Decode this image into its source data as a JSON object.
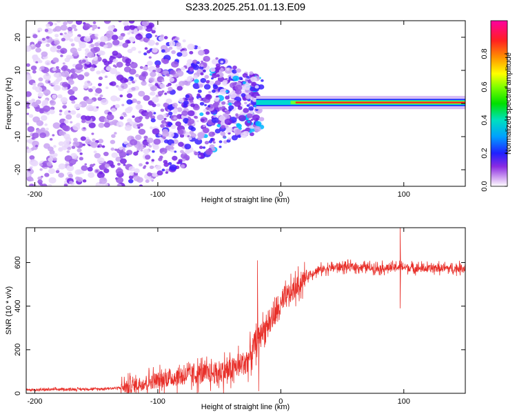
{
  "title": "S233.2025.251.01.13.E09",
  "colors": {
    "snr_line": "#e8302a",
    "frame": "#000000",
    "background": "#ffffff"
  },
  "chart_data": [
    {
      "type": "heatmap",
      "description_role": "spectrogram",
      "xlabel": "Height of straight line (km)",
      "ylabel": "Frequency (Hz)",
      "xlim": [
        -207,
        150
      ],
      "ylim": [
        -25,
        25
      ],
      "x_ticks": [
        -200,
        -100,
        0,
        100
      ],
      "x_tick_labels": [
        "-200",
        "-100",
        "0",
        "100"
      ],
      "y_ticks": [
        -20,
        -10,
        0,
        10,
        20
      ],
      "y_tick_labels": [
        "-20",
        "-10",
        "0",
        "10",
        "20"
      ],
      "carrier_frequency_hz": 0.3,
      "carrier_onset_km": -20,
      "noise_region": [
        -207,
        -20
      ],
      "colorbar": {
        "label": "Normalized spectral amplitude",
        "range": [
          0,
          1
        ],
        "ticks": [
          0.0,
          0.2,
          0.4,
          0.6,
          0.8
        ],
        "tick_labels": [
          "0.0",
          "0.2",
          "0.4",
          "0.6",
          "0.8"
        ],
        "colormap": "rainbow (violet low → red high)"
      }
    },
    {
      "type": "line",
      "xlabel": "Height of straight line (km)",
      "ylabel": "SNR (10 * v/v)",
      "xlim": [
        -207,
        150
      ],
      "ylim": [
        0,
        760
      ],
      "x_ticks": [
        -200,
        -100,
        0,
        100
      ],
      "x_tick_labels": [
        "-200",
        "-100",
        "0",
        "100"
      ],
      "y_ticks": [
        0,
        200,
        400,
        600
      ],
      "y_tick_labels": [
        "0",
        "200",
        "400",
        "600"
      ],
      "series": [
        {
          "name": "SNR",
          "x": [
            -207,
            -180,
            -150,
            -130,
            -120,
            -110,
            -100,
            -90,
            -80,
            -70,
            -60,
            -50,
            -40,
            -30,
            -25,
            -20,
            -15,
            -10,
            -5,
            0,
            5,
            10,
            15,
            20,
            25,
            30,
            40,
            50,
            60,
            70,
            80,
            90,
            95,
            100,
            110,
            120,
            130,
            140,
            150
          ],
          "y": [
            15,
            18,
            20,
            25,
            35,
            50,
            60,
            70,
            80,
            85,
            90,
            95,
            110,
            140,
            170,
            240,
            290,
            320,
            360,
            400,
            440,
            470,
            500,
            530,
            550,
            565,
            575,
            580,
            580,
            578,
            575,
            575,
            580,
            578,
            575,
            572,
            575,
            572,
            575
          ],
          "color": "#e8302a"
        }
      ],
      "annotations": [
        {
          "x": -19,
          "y": 610,
          "note": "spike"
        },
        {
          "x": -18,
          "y": 10,
          "note": "dropout"
        },
        {
          "x": 97,
          "y": 760,
          "note": "spike"
        },
        {
          "x": 97,
          "y": 390,
          "note": "dip"
        }
      ]
    }
  ]
}
